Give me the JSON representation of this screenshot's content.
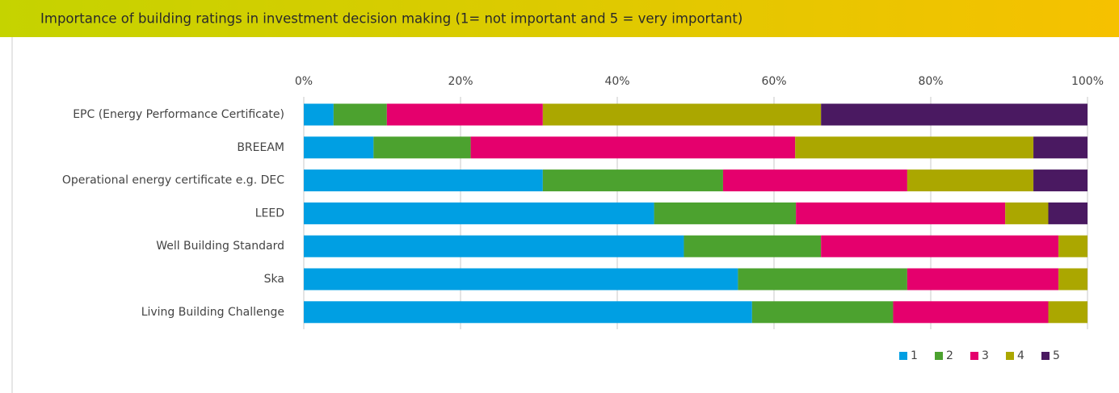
{
  "chart_data": {
    "type": "stacked-barh",
    "title": "Importance of building ratings in investment decision making (1= not important and 5 = very important)",
    "categories": [
      "EPC (Energy Performance Certificate)",
      "BREEAM",
      "Operational energy certificate e.g. DEC",
      "LEED",
      "Well Building Standard",
      "Ska",
      "Living Building Challenge"
    ],
    "series": [
      {
        "name": "1",
        "color": "#009fe3",
        "values": [
          3.8,
          8.9,
          30.5,
          44.7,
          48.5,
          55.4,
          57.2
        ]
      },
      {
        "name": "2",
        "color": "#4ca22f",
        "values": [
          6.8,
          12.4,
          23.0,
          18.1,
          17.5,
          21.6,
          18.0
        ]
      },
      {
        "name": "3",
        "color": "#e5006d",
        "values": [
          19.9,
          41.4,
          23.5,
          26.7,
          30.3,
          19.3,
          19.8
        ]
      },
      {
        "name": "4",
        "color": "#aba700",
        "values": [
          35.5,
          30.4,
          16.1,
          5.5,
          3.7,
          3.7,
          5.0
        ]
      },
      {
        "name": "5",
        "color": "#4a1961",
        "values": [
          34.0,
          6.9,
          6.9,
          5.0,
          0,
          0,
          0
        ]
      }
    ],
    "xlim": [
      0,
      100
    ],
    "xticks": [
      {
        "value": 0,
        "label": "0%"
      },
      {
        "value": 20,
        "label": "20%"
      },
      {
        "value": 40,
        "label": "40%"
      },
      {
        "value": 60,
        "label": "60%"
      },
      {
        "value": 80,
        "label": "80%"
      },
      {
        "value": 100,
        "label": "100%"
      }
    ],
    "grid": true,
    "legend": "bottom-right"
  }
}
